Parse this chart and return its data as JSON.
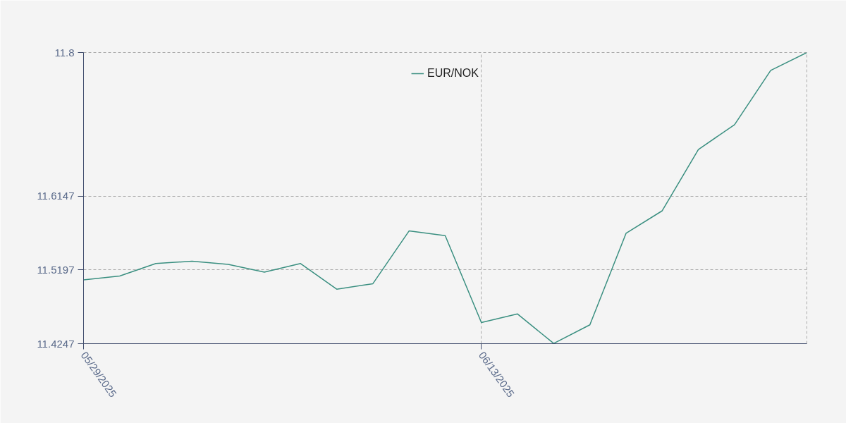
{
  "chart_data": {
    "type": "line",
    "categories": [
      "05/29/2025",
      null,
      null,
      null,
      null,
      null,
      null,
      null,
      null,
      null,
      null,
      "06/13/2025",
      null,
      null,
      null,
      null,
      null,
      null,
      null,
      null,
      null
    ],
    "series": [
      {
        "name": "EUR/NOK",
        "color": "#3a8f80",
        "values": [
          11.507,
          11.512,
          11.528,
          11.531,
          11.527,
          11.517,
          11.528,
          11.495,
          11.502,
          11.57,
          11.564,
          11.452,
          11.463,
          11.425,
          11.449,
          11.567,
          11.596,
          11.675,
          11.707,
          11.777,
          11.8
        ]
      }
    ],
    "ylim": [
      11.4247,
      11.8
    ],
    "yticks": [
      11.4247,
      11.5197,
      11.6147,
      11.8
    ],
    "grid": true,
    "legend": "top",
    "marker": "none",
    "line_style": "solid"
  }
}
